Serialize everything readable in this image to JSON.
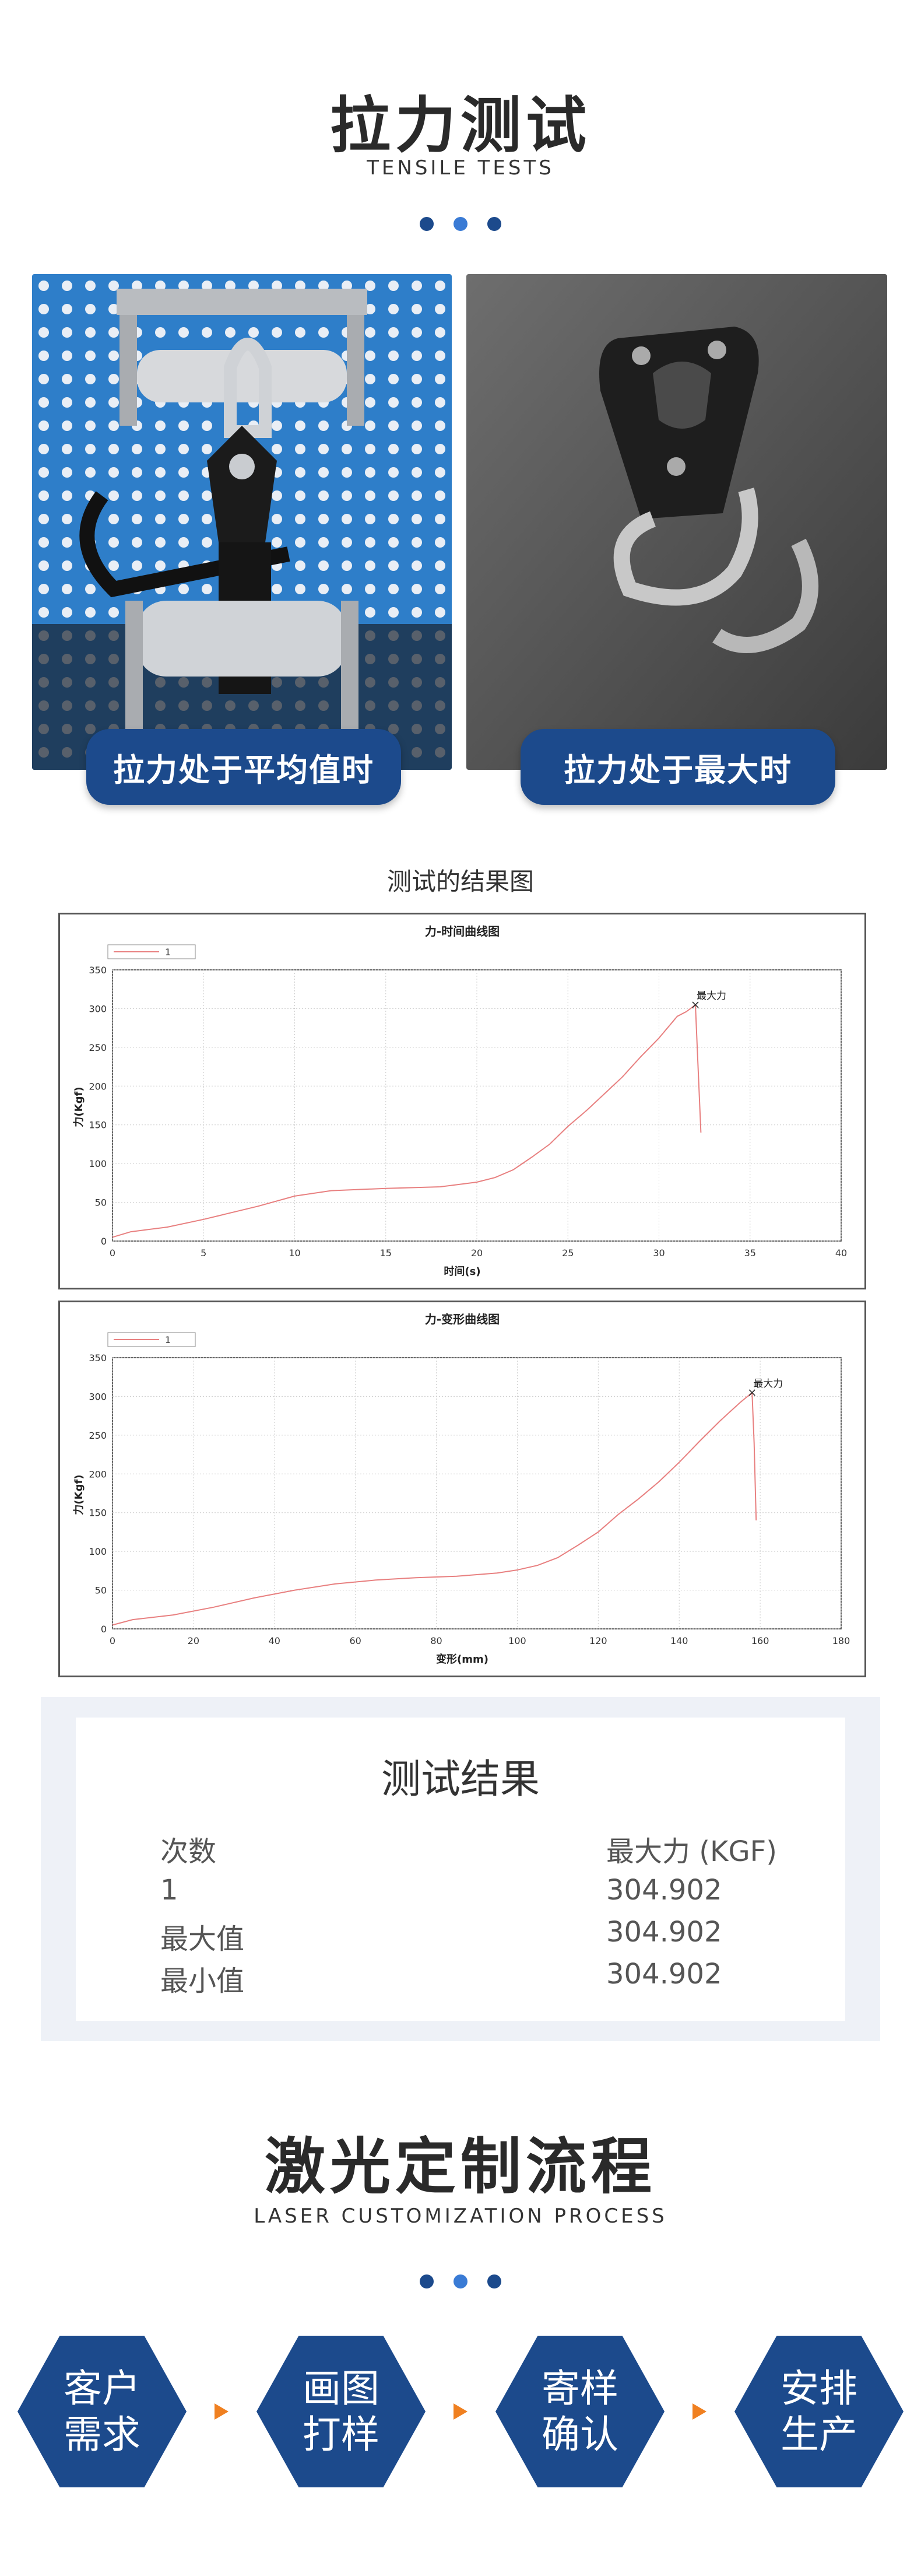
{
  "section1": {
    "title": "拉力测试",
    "subtitle": "TENSILE TESTS",
    "dot_colors": [
      "#1c4a8c",
      "#3a7bd5",
      "#1c4a8c"
    ]
  },
  "photos": {
    "left_caption": "拉力处于平均值时",
    "right_caption": "拉力处于最大时"
  },
  "results_heading": "测试的结果图",
  "charts": {
    "line_color": "#e88080",
    "legend_label": "1",
    "annotation": "最大力",
    "ylabel": "力(Kgf)"
  },
  "chart_data": [
    {
      "type": "line",
      "title": "力-时间曲线图",
      "xlabel": "时间(s)",
      "ylabel": "力(Kgf)",
      "xlim": [
        0,
        40
      ],
      "ylim": [
        0,
        350
      ],
      "xticks": [
        "0",
        "5",
        "10",
        "15",
        "20",
        "25",
        "30",
        "35",
        "40"
      ],
      "yticks": [
        "0",
        "50",
        "100",
        "150",
        "200",
        "250",
        "300",
        "350"
      ],
      "series": [
        {
          "name": "1",
          "x": [
            0,
            1,
            3,
            5,
            8,
            10,
            12,
            15,
            18,
            20,
            21,
            22,
            23,
            24,
            25,
            26,
            27,
            28,
            29,
            30,
            31,
            31.5,
            32,
            32.1,
            32.3
          ],
          "y": [
            5,
            12,
            18,
            28,
            45,
            58,
            65,
            68,
            70,
            76,
            82,
            92,
            108,
            125,
            148,
            168,
            190,
            212,
            238,
            262,
            290,
            296,
            304.902,
            250,
            140
          ]
        }
      ],
      "peak": {
        "x": 32,
        "y": 304.902,
        "label": "最大力"
      }
    },
    {
      "type": "line",
      "title": "力-变形曲线图",
      "xlabel": "变形(mm)",
      "ylabel": "力(Kgf)",
      "xlim": [
        0,
        180
      ],
      "ylim": [
        0,
        350
      ],
      "xticks": [
        "0",
        "20",
        "40",
        "60",
        "80",
        "100",
        "120",
        "140",
        "160",
        "180"
      ],
      "yticks": [
        "0",
        "50",
        "100",
        "150",
        "200",
        "250",
        "300",
        "350"
      ],
      "series": [
        {
          "name": "1",
          "x": [
            0,
            5,
            15,
            25,
            35,
            45,
            55,
            65,
            75,
            85,
            95,
            100,
            105,
            110,
            115,
            120,
            125,
            130,
            135,
            140,
            145,
            150,
            155,
            158,
            158.5,
            159
          ],
          "y": [
            5,
            12,
            18,
            28,
            40,
            50,
            58,
            63,
            66,
            68,
            72,
            76,
            82,
            92,
            108,
            125,
            148,
            168,
            190,
            215,
            242,
            268,
            292,
            304.902,
            240,
            140
          ]
        }
      ],
      "peak": {
        "x": 158,
        "y": 304.902,
        "label": "最大力"
      }
    }
  ],
  "results": {
    "title": "测试结果",
    "col1_header": "次数",
    "col2_header": "最大力 (KGF)",
    "rows": [
      {
        "label": "1",
        "value": "304.902"
      },
      {
        "label": "最大值",
        "value": "304.902"
      },
      {
        "label": "最小值",
        "value": "304.902"
      }
    ]
  },
  "section2": {
    "title": "激光定制流程",
    "subtitle": "LASER CUSTOMIZATION PROCESS",
    "steps": [
      {
        "line1": "客户",
        "line2": "需求"
      },
      {
        "line1": "画图",
        "line2": "打样"
      },
      {
        "line1": "寄样",
        "line2": "确认"
      },
      {
        "line1": "安排",
        "line2": "生产"
      }
    ]
  }
}
